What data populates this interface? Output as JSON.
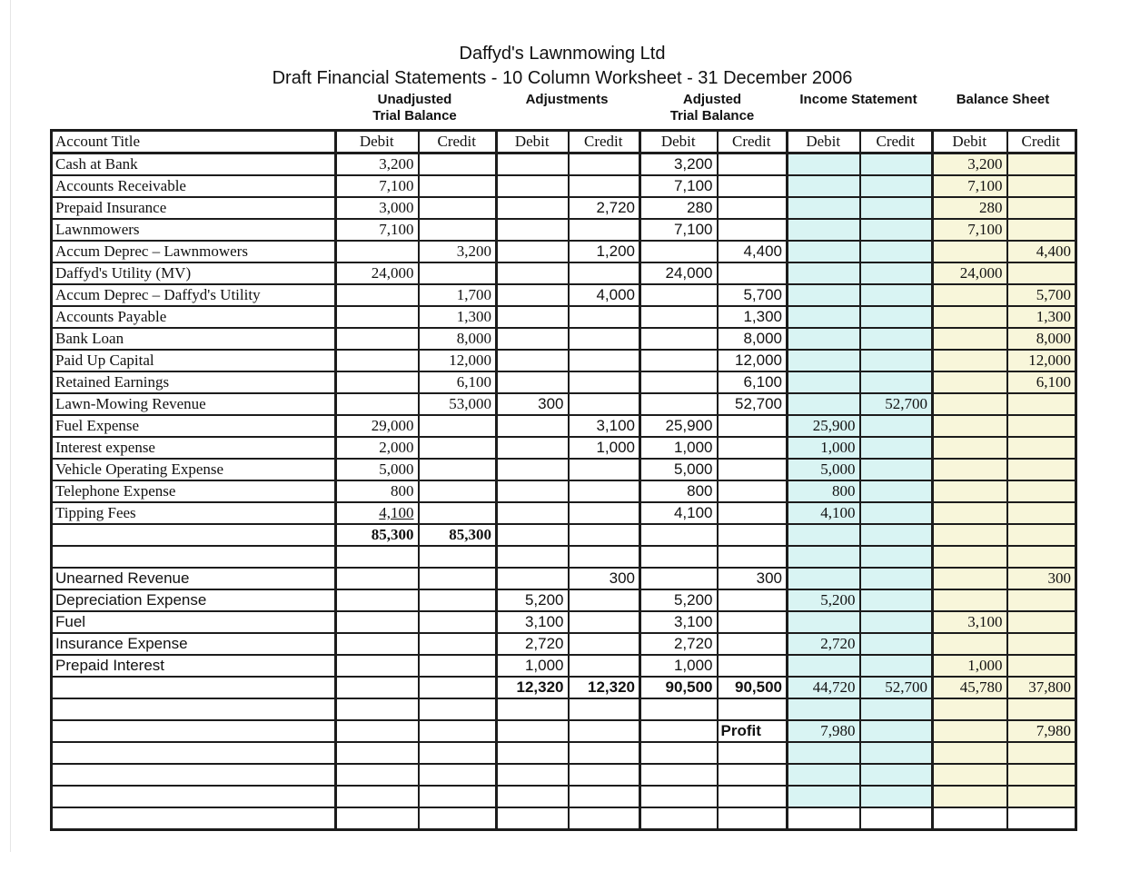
{
  "title": "Daffyd's Lawnmowing Ltd",
  "subtitle": "Draft Financial Statements - 10 Column Worksheet - 31 December 2006",
  "group_headers": [
    {
      "line1": "Unadjusted",
      "line2": "Trial Balance"
    },
    {
      "line1": "Adjustments",
      "line2": ""
    },
    {
      "line1": "Adjusted",
      "line2": "Trial Balance"
    },
    {
      "line1": "Income Statement",
      "line2": ""
    },
    {
      "line1": "Balance Sheet",
      "line2": ""
    }
  ],
  "header_row": {
    "account": "Account Title",
    "debit": "Debit",
    "credit": "Credit"
  },
  "colors": {
    "income_statement_fill": "#d9f4f3",
    "balance_sheet_fill": "#f8f6da",
    "grid": "#1c1c1c"
  },
  "table": {
    "rows": [
      {
        "cells": [
          "Cash at Bank",
          "3,200",
          "",
          "",
          "",
          "3,200",
          "",
          "",
          "",
          "3,200",
          ""
        ]
      },
      {
        "cells": [
          "Accounts Receivable",
          "7,100",
          "",
          "",
          "",
          "7,100",
          "",
          "",
          "",
          "7,100",
          ""
        ]
      },
      {
        "cells": [
          "Prepaid Insurance",
          "3,000",
          "",
          "",
          "2,720",
          "280",
          "",
          "",
          "",
          "280",
          ""
        ]
      },
      {
        "cells": [
          "Lawnmowers",
          "7,100",
          "",
          "",
          "",
          "7,100",
          "",
          "",
          "",
          "7,100",
          ""
        ]
      },
      {
        "cells": [
          "Accum Deprec – Lawnmowers",
          "",
          "3,200",
          "",
          "1,200",
          "",
          "4,400",
          "",
          "",
          "",
          "4,400"
        ]
      },
      {
        "cells": [
          "Daffyd's Utility (MV)",
          "24,000",
          "",
          "",
          "",
          "24,000",
          "",
          "",
          "",
          "24,000",
          ""
        ]
      },
      {
        "cells": [
          "Accum Deprec – Daffyd's Utility",
          "",
          "1,700",
          "",
          "4,000",
          "",
          "5,700",
          "",
          "",
          "",
          "5,700"
        ]
      },
      {
        "cells": [
          "Accounts Payable",
          "",
          "1,300",
          "",
          "",
          "",
          "1,300",
          "",
          "",
          "",
          "1,300"
        ]
      },
      {
        "cells": [
          "Bank Loan",
          "",
          "8,000",
          "",
          "",
          "",
          "8,000",
          "",
          "",
          "",
          "8,000"
        ]
      },
      {
        "cells": [
          "Paid Up Capital",
          "",
          "12,000",
          "",
          "",
          "",
          "12,000",
          "",
          "",
          "",
          "12,000"
        ]
      },
      {
        "cells": [
          "Retained Earnings",
          "",
          "6,100",
          "",
          "",
          "",
          "6,100",
          "",
          "",
          "",
          "6,100"
        ]
      },
      {
        "cells": [
          "Lawn-Mowing Revenue",
          "",
          "53,000",
          "300",
          "",
          "",
          "52,700",
          "",
          "52,700",
          "",
          ""
        ]
      },
      {
        "cells": [
          "Fuel Expense",
          "29,000",
          "",
          "",
          "3,100",
          "25,900",
          "",
          "25,900",
          "",
          "",
          ""
        ]
      },
      {
        "cells": [
          "Interest expense",
          "2,000",
          "",
          "",
          "1,000",
          "1,000",
          "",
          "1,000",
          "",
          "",
          ""
        ]
      },
      {
        "cells": [
          "Vehicle Operating Expense",
          "5,000",
          "",
          "",
          "",
          "5,000",
          "",
          "5,000",
          "",
          "",
          ""
        ]
      },
      {
        "cells": [
          "Telephone Expense",
          "800",
          "",
          "",
          "",
          "800",
          "",
          "800",
          "",
          "",
          ""
        ]
      },
      {
        "cells": [
          "Tipping Fees",
          "4,100",
          "",
          "",
          "",
          "4,100",
          "",
          "4,100",
          "",
          "",
          ""
        ],
        "underline": [
          1
        ]
      },
      {
        "cells": [
          "",
          "85,300",
          "85,300",
          "",
          "",
          "",
          "",
          "",
          "",
          "",
          ""
        ],
        "bold": [
          1,
          2
        ]
      },
      {
        "cells": [
          "",
          "",
          "",
          "",
          "",
          "",
          "",
          "",
          "",
          "",
          ""
        ]
      },
      {
        "cells": [
          "Unearned Revenue",
          "",
          "",
          "",
          "300",
          "",
          "300",
          "",
          "",
          "",
          "300"
        ],
        "labelFont": "sans"
      },
      {
        "cells": [
          "Depreciation Expense",
          "",
          "",
          "5,200",
          "",
          "5,200",
          "",
          "5,200",
          "",
          "",
          ""
        ],
        "labelFont": "sans"
      },
      {
        "cells": [
          "Fuel",
          "",
          "",
          "3,100",
          "",
          "3,100",
          "",
          "",
          "",
          "3,100",
          ""
        ],
        "labelFont": "sans"
      },
      {
        "cells": [
          "Insurance Expense",
          "",
          "",
          "2,720",
          "",
          "2,720",
          "",
          "2,720",
          "",
          "",
          ""
        ],
        "labelFont": "sans"
      },
      {
        "cells": [
          "Prepaid Interest",
          "",
          "",
          "1,000",
          "",
          "1,000",
          "",
          "",
          "",
          "1,000",
          ""
        ],
        "labelFont": "sans"
      },
      {
        "cells": [
          "",
          "",
          "",
          "12,320",
          "12,320",
          "90,500",
          "90,500",
          "44,720",
          "52,700",
          "45,780",
          "37,800"
        ],
        "bold": [
          3,
          4,
          5,
          6
        ]
      },
      {
        "cells": [
          "",
          "",
          "",
          "",
          "",
          "",
          "",
          "",
          "",
          "",
          ""
        ]
      },
      {
        "cells": [
          "",
          "",
          "",
          "",
          "",
          "",
          "Profit",
          "7,980",
          "",
          "",
          "7,980"
        ],
        "bold": [
          6
        ],
        "left": [
          6
        ]
      },
      {
        "cells": [
          "",
          "",
          "",
          "",
          "",
          "",
          "",
          "",
          "",
          "",
          ""
        ]
      },
      {
        "cells": [
          "",
          "",
          "",
          "",
          "",
          "",
          "",
          "",
          "",
          "",
          ""
        ]
      },
      {
        "cells": [
          "",
          "",
          "",
          "",
          "",
          "",
          "",
          "",
          "",
          "",
          ""
        ]
      },
      {
        "cells": [
          "",
          "",
          "",
          "",
          "",
          "",
          "",
          "",
          "",
          "",
          ""
        ],
        "noFill": true
      }
    ]
  }
}
